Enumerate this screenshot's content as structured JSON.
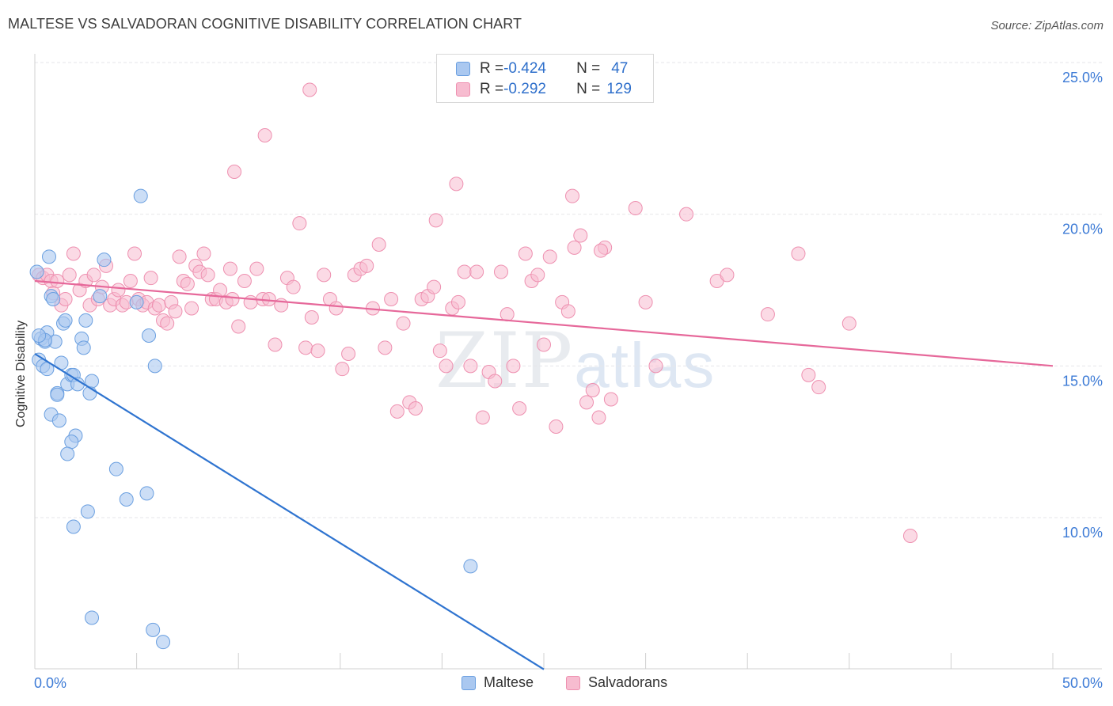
{
  "header": {
    "title": "MALTESE VS SALVADORAN COGNITIVE DISABILITY CORRELATION CHART",
    "source": "Source: ZipAtlas.com"
  },
  "watermark": {
    "zip": "ZIP",
    "atlas": "atlas"
  },
  "legend": {
    "rows": [
      {
        "r_label": "R = ",
        "r_value": "-0.424",
        "n_label": "N = ",
        "n_value": "47"
      },
      {
        "r_label": "R = ",
        "r_value": "-0.292",
        "n_label": "N = ",
        "n_value": "129"
      }
    ]
  },
  "colors": {
    "maltese_fill": "#aac8f0",
    "maltese_stroke": "#6a9fe0",
    "maltese_line": "#2f74d0",
    "salvadoran_fill": "#f7bcd0",
    "salvadoran_stroke": "#ee90b0",
    "salvadoran_line": "#e6689a",
    "axis_text": "#3d7bd6",
    "grid": "#e6e6ea"
  },
  "chart_data": {
    "type": "scatter",
    "title": "MALTESE VS SALVADORAN COGNITIVE DISABILITY CORRELATION CHART",
    "xlabel": "",
    "ylabel": "Cognitive Disability",
    "xlim": [
      0,
      50
    ],
    "ylim": [
      5,
      26
    ],
    "x_tick_labels": [
      "0.0%",
      "50.0%"
    ],
    "y_ticks": [
      10,
      15,
      20,
      25
    ],
    "y_tick_labels": [
      "10.0%",
      "15.0%",
      "20.0%",
      "25.0%"
    ],
    "legend_position": "bottom-center",
    "series": [
      {
        "name": "Maltese",
        "r": -0.424,
        "n": 47,
        "trend": {
          "x": [
            0,
            25
          ],
          "y": [
            15.4,
            5.0
          ]
        },
        "points": [
          [
            0.1,
            18.1
          ],
          [
            0.3,
            15.9
          ],
          [
            0.5,
            15.8
          ],
          [
            0.6,
            16.1
          ],
          [
            0.7,
            18.6
          ],
          [
            0.8,
            17.3
          ],
          [
            0.9,
            17.2
          ],
          [
            0.2,
            15.2
          ],
          [
            0.4,
            15.0
          ],
          [
            0.6,
            14.9
          ],
          [
            1.0,
            15.8
          ],
          [
            1.3,
            15.1
          ],
          [
            1.4,
            16.4
          ],
          [
            1.5,
            16.5
          ],
          [
            1.6,
            14.4
          ],
          [
            1.8,
            14.7
          ],
          [
            1.9,
            14.7
          ],
          [
            2.3,
            15.9
          ],
          [
            2.4,
            15.6
          ],
          [
            2.5,
            16.5
          ],
          [
            1.1,
            14.1
          ],
          [
            2.1,
            14.4
          ],
          [
            2.7,
            14.1
          ],
          [
            2.8,
            14.5
          ],
          [
            0.8,
            13.4
          ],
          [
            1.2,
            13.2
          ],
          [
            2.0,
            12.7
          ],
          [
            1.8,
            12.5
          ],
          [
            1.6,
            12.1
          ],
          [
            3.2,
            17.3
          ],
          [
            3.4,
            18.5
          ],
          [
            5.0,
            17.1
          ],
          [
            5.6,
            16.0
          ],
          [
            5.9,
            15.0
          ],
          [
            5.2,
            20.6
          ],
          [
            4.0,
            11.6
          ],
          [
            4.5,
            10.6
          ],
          [
            5.5,
            10.8
          ],
          [
            2.6,
            10.2
          ],
          [
            1.9,
            9.7
          ],
          [
            2.8,
            6.7
          ],
          [
            5.8,
            6.3
          ],
          [
            6.3,
            5.9
          ],
          [
            21.4,
            8.4
          ],
          [
            0.5,
            15.85
          ],
          [
            0.2,
            16.0
          ],
          [
            1.1,
            14.05
          ]
        ]
      },
      {
        "name": "Salvadorans",
        "r": -0.292,
        "n": 129,
        "trend": {
          "x": [
            0,
            50
          ],
          "y": [
            17.8,
            15.0
          ]
        },
        "points": [
          [
            0.2,
            18.0
          ],
          [
            0.4,
            17.9
          ],
          [
            0.6,
            18.0
          ],
          [
            0.8,
            17.8
          ],
          [
            0.9,
            17.4
          ],
          [
            1.1,
            17.8
          ],
          [
            1.3,
            17.0
          ],
          [
            1.5,
            17.2
          ],
          [
            1.7,
            18.0
          ],
          [
            1.9,
            18.7
          ],
          [
            2.2,
            17.5
          ],
          [
            2.5,
            17.8
          ],
          [
            2.7,
            17.0
          ],
          [
            2.9,
            18.0
          ],
          [
            3.1,
            17.2
          ],
          [
            3.3,
            17.6
          ],
          [
            3.5,
            18.3
          ],
          [
            3.7,
            17.0
          ],
          [
            3.9,
            17.2
          ],
          [
            4.1,
            17.5
          ],
          [
            4.3,
            17.0
          ],
          [
            4.5,
            17.1
          ],
          [
            4.7,
            17.8
          ],
          [
            4.9,
            18.7
          ],
          [
            5.1,
            17.2
          ],
          [
            5.3,
            17.0
          ],
          [
            5.5,
            17.1
          ],
          [
            5.7,
            17.9
          ],
          [
            5.9,
            16.9
          ],
          [
            6.1,
            17.0
          ],
          [
            6.3,
            16.5
          ],
          [
            6.5,
            16.4
          ],
          [
            6.7,
            17.1
          ],
          [
            6.9,
            16.8
          ],
          [
            7.1,
            18.6
          ],
          [
            7.3,
            17.8
          ],
          [
            7.5,
            17.7
          ],
          [
            7.7,
            16.9
          ],
          [
            7.9,
            18.3
          ],
          [
            8.1,
            18.1
          ],
          [
            8.3,
            18.7
          ],
          [
            8.5,
            18.0
          ],
          [
            8.7,
            17.2
          ],
          [
            8.9,
            17.2
          ],
          [
            9.1,
            17.5
          ],
          [
            9.4,
            17.1
          ],
          [
            9.7,
            17.2
          ],
          [
            10.0,
            16.3
          ],
          [
            10.3,
            17.8
          ],
          [
            10.6,
            17.1
          ],
          [
            10.9,
            18.2
          ],
          [
            11.2,
            17.2
          ],
          [
            11.5,
            17.2
          ],
          [
            11.8,
            15.7
          ],
          [
            12.1,
            17.0
          ],
          [
            12.4,
            17.9
          ],
          [
            12.7,
            17.6
          ],
          [
            13.0,
            19.7
          ],
          [
            13.3,
            15.6
          ],
          [
            13.6,
            16.6
          ],
          [
            13.9,
            15.5
          ],
          [
            14.2,
            18.0
          ],
          [
            14.5,
            17.2
          ],
          [
            14.8,
            16.9
          ],
          [
            15.1,
            14.9
          ],
          [
            15.4,
            15.4
          ],
          [
            15.7,
            18.0
          ],
          [
            16.0,
            18.2
          ],
          [
            16.3,
            18.3
          ],
          [
            16.6,
            16.9
          ],
          [
            16.9,
            19.0
          ],
          [
            17.2,
            15.6
          ],
          [
            17.5,
            17.2
          ],
          [
            17.8,
            13.5
          ],
          [
            18.1,
            16.4
          ],
          [
            18.4,
            13.8
          ],
          [
            18.7,
            13.6
          ],
          [
            19.0,
            17.2
          ],
          [
            19.3,
            17.3
          ],
          [
            19.6,
            17.6
          ],
          [
            19.9,
            15.5
          ],
          [
            20.2,
            15.0
          ],
          [
            20.5,
            16.9
          ],
          [
            20.8,
            17.1
          ],
          [
            21.1,
            18.1
          ],
          [
            21.4,
            15.0
          ],
          [
            21.7,
            18.1
          ],
          [
            22.0,
            13.3
          ],
          [
            22.3,
            14.8
          ],
          [
            22.6,
            14.5
          ],
          [
            22.9,
            18.1
          ],
          [
            23.2,
            16.7
          ],
          [
            23.5,
            15.0
          ],
          [
            23.8,
            13.6
          ],
          [
            24.1,
            18.7
          ],
          [
            24.4,
            17.8
          ],
          [
            24.7,
            18.0
          ],
          [
            25.0,
            15.7
          ],
          [
            25.3,
            18.6
          ],
          [
            25.6,
            13.0
          ],
          [
            25.9,
            17.1
          ],
          [
            26.2,
            16.8
          ],
          [
            26.5,
            18.9
          ],
          [
            26.8,
            19.3
          ],
          [
            27.1,
            13.8
          ],
          [
            27.4,
            14.2
          ],
          [
            27.7,
            13.3
          ],
          [
            28.0,
            18.9
          ],
          [
            28.3,
            13.9
          ],
          [
            29.5,
            20.2
          ],
          [
            30.0,
            17.1
          ],
          [
            30.5,
            15.0
          ],
          [
            32.0,
            20.0
          ],
          [
            33.5,
            17.8
          ],
          [
            34.0,
            18.0
          ],
          [
            36.0,
            16.7
          ],
          [
            37.5,
            18.7
          ],
          [
            38.0,
            14.7
          ],
          [
            38.5,
            14.3
          ],
          [
            40.0,
            16.4
          ],
          [
            43.0,
            9.4
          ],
          [
            13.5,
            24.1
          ],
          [
            11.3,
            22.6
          ],
          [
            9.8,
            21.4
          ],
          [
            20.7,
            21.0
          ],
          [
            26.4,
            20.6
          ],
          [
            19.7,
            19.8
          ],
          [
            9.6,
            18.2
          ],
          [
            27.8,
            18.8
          ]
        ]
      }
    ]
  },
  "bottom_legend": {
    "maltese": "Maltese",
    "salvadorans": "Salvadorans"
  }
}
